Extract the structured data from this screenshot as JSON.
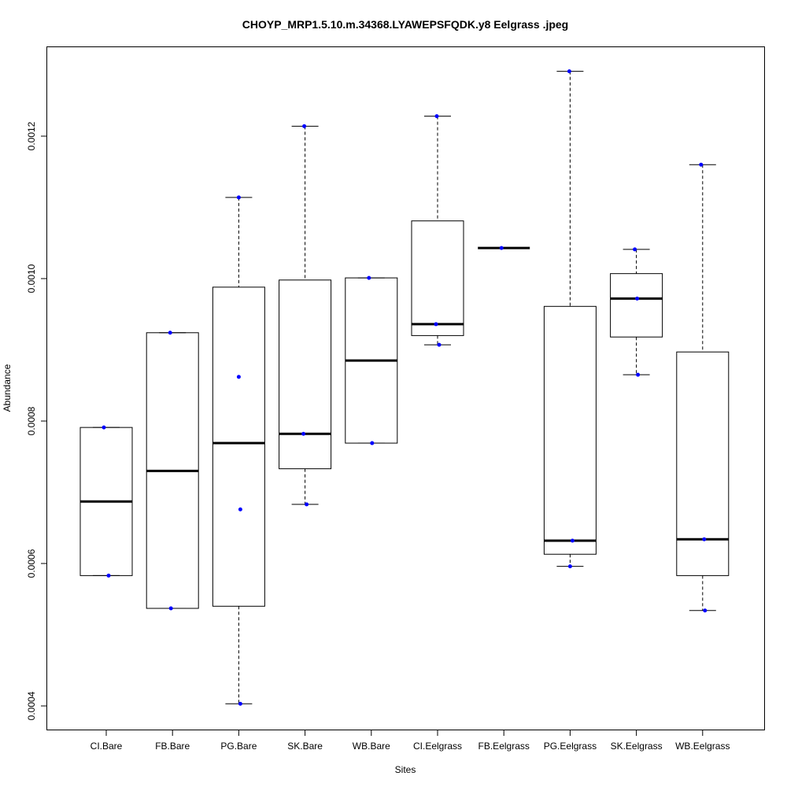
{
  "chart_data": {
    "type": "boxplot",
    "title": "CHOYP_MRP1.5.10.m.34368.LYAWEPSFQDK.y8 Eelgrass .jpeg",
    "xlabel": "Sites",
    "ylabel": "Abundance",
    "ylim": [
      0.00036,
      0.00132
    ],
    "yticks": [
      0.0004,
      0.0006,
      0.0008,
      0.001,
      0.0012
    ],
    "ytick_labels": [
      "0.0004",
      "0.0006",
      "0.0008",
      "0.0010",
      "0.0012"
    ],
    "point_color": "#0000ff",
    "categories": [
      "CI.Bare",
      "FB.Bare",
      "PG.Bare",
      "SK.Bare",
      "WB.Bare",
      "CI.Eelgrass",
      "FB.Eelgrass",
      "PG.Eelgrass",
      "SK.Eelgrass",
      "WB.Eelgrass"
    ],
    "boxes": [
      {
        "whisker_low": 0.000583,
        "q1": 0.000583,
        "median": 0.000687,
        "q3": 0.000791,
        "whisker_high": 0.000791,
        "points": [
          0.000791,
          0.000583
        ]
      },
      {
        "whisker_low": 0.000537,
        "q1": 0.000537,
        "median": 0.00073,
        "q3": 0.000924,
        "whisker_high": 0.000924,
        "points": [
          0.000924,
          0.000537
        ]
      },
      {
        "whisker_low": 0.000403,
        "q1": 0.00054,
        "median": 0.000769,
        "q3": 0.000988,
        "whisker_high": 0.001114,
        "points": [
          0.001114,
          0.000862,
          0.000676,
          0.000403
        ]
      },
      {
        "whisker_low": 0.000683,
        "q1": 0.000733,
        "median": 0.000782,
        "q3": 0.000998,
        "whisker_high": 0.001214,
        "points": [
          0.001214,
          0.000782,
          0.000683
        ]
      },
      {
        "whisker_low": 0.000769,
        "q1": 0.000769,
        "median": 0.000885,
        "q3": 0.001001,
        "whisker_high": 0.001001,
        "points": [
          0.001001,
          0.000769
        ]
      },
      {
        "whisker_low": 0.000907,
        "q1": 0.00092,
        "median": 0.000936,
        "q3": 0.001081,
        "whisker_high": 0.001228,
        "points": [
          0.001228,
          0.000936,
          0.000907
        ]
      },
      {
        "whisker_low": 0.001043,
        "q1": 0.001043,
        "median": 0.001043,
        "q3": 0.001043,
        "whisker_high": 0.001043,
        "points": [
          0.001043
        ]
      },
      {
        "whisker_low": 0.000596,
        "q1": 0.000613,
        "median": 0.000632,
        "q3": 0.000961,
        "whisker_high": 0.001291,
        "points": [
          0.001291,
          0.000632,
          0.000596
        ]
      },
      {
        "whisker_low": 0.000865,
        "q1": 0.000918,
        "median": 0.000972,
        "q3": 0.001007,
        "whisker_high": 0.001041,
        "points": [
          0.001041,
          0.000972,
          0.000865
        ]
      },
      {
        "whisker_low": 0.000534,
        "q1": 0.000583,
        "median": 0.000634,
        "q3": 0.000897,
        "whisker_high": 0.00116,
        "points": [
          0.00116,
          0.000634,
          0.000534
        ]
      }
    ]
  }
}
